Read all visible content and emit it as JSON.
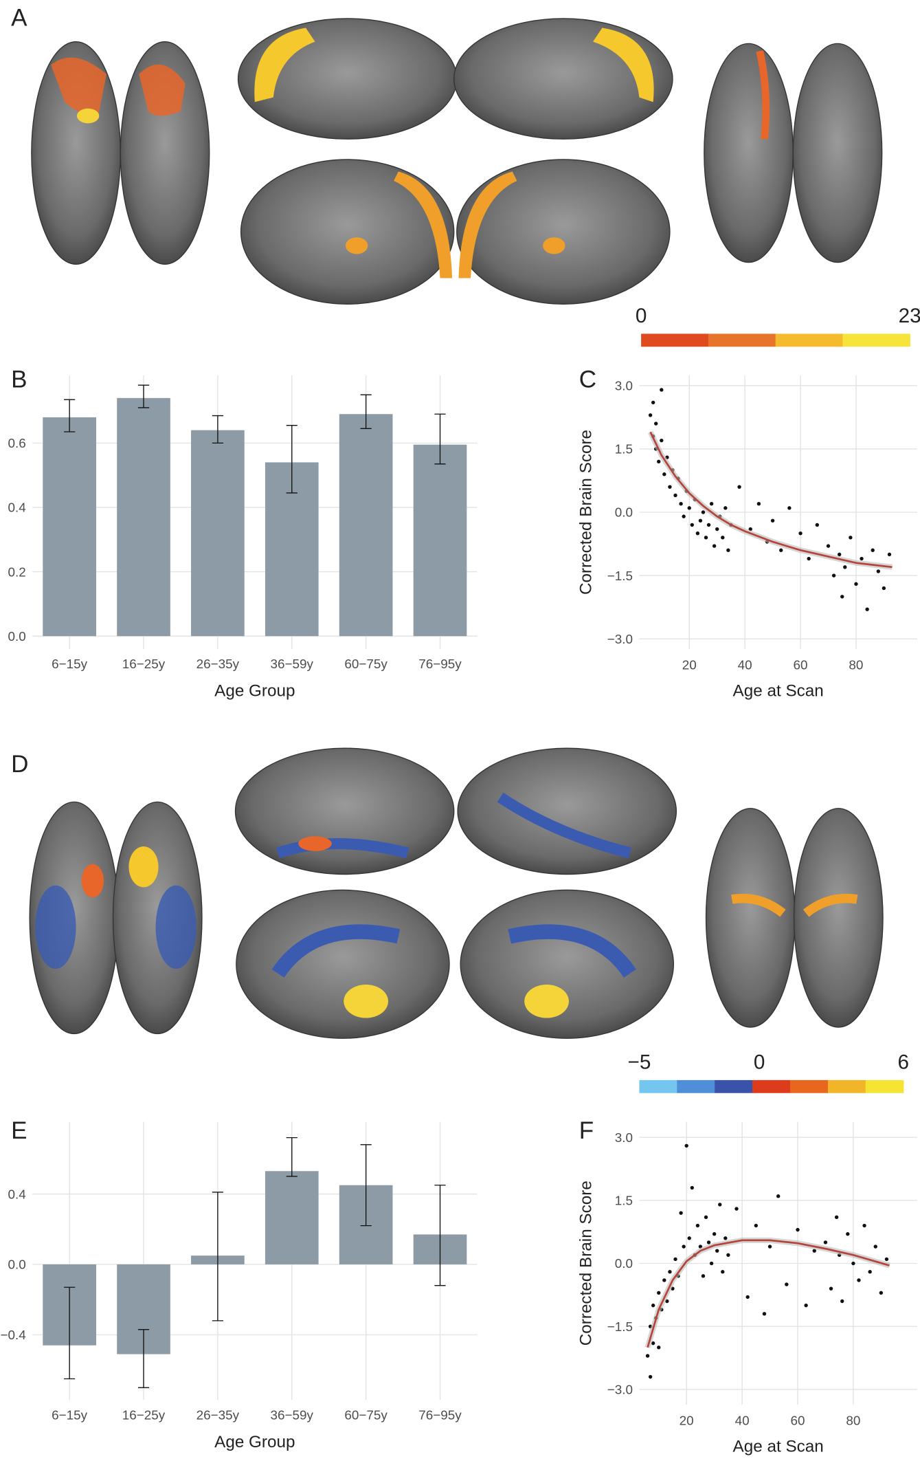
{
  "panels": [
    "A",
    "B",
    "C",
    "D",
    "E",
    "F"
  ],
  "colorbars": [
    {
      "lim": [
        0,
        23
      ],
      "ticks": [
        0,
        23
      ],
      "colors": [
        "#e04a1f",
        "#e8732a",
        "#f5bb2e",
        "#f7e43a"
      ]
    },
    {
      "lim": [
        -5,
        6
      ],
      "ticks": [
        {
          "value": -5,
          "label": "−5"
        },
        0,
        6
      ],
      "colors": [
        "#74c6f0",
        "#4f8fd8",
        "#3a53a8",
        "#dd3c1c",
        "#e8661e",
        "#f2b52a",
        "#f5e431"
      ]
    }
  ],
  "chart_data": [
    {
      "type": "bar",
      "x_label": "Age Group",
      "categories": [
        "6−15y",
        "16−25y",
        "26−35y",
        "36−59y",
        "60−75y",
        "76−95y"
      ],
      "values": [
        0.68,
        0.74,
        0.64,
        0.54,
        0.69,
        0.595
      ],
      "ci": [
        [
          0.635,
          0.735
        ],
        [
          0.71,
          0.78
        ],
        [
          0.6,
          0.685
        ],
        [
          0.445,
          0.655
        ],
        [
          0.645,
          0.75
        ],
        [
          0.535,
          0.69
        ]
      ],
      "color": "#8c9ba5",
      "ylim": [
        -0.04,
        0.81
      ],
      "yticks": [
        {
          "value": 0,
          "label": "0.0"
        },
        0.2,
        0.4,
        0.6
      ],
      "grid": true
    },
    {
      "type": "scatter",
      "x_label": "Age at Scan",
      "y_label": "Corrected Brain Score",
      "x": [
        6,
        7,
        7,
        8,
        8,
        9,
        10,
        10,
        11,
        12,
        13,
        14,
        15,
        16,
        17,
        18,
        19,
        20,
        21,
        22,
        23,
        24,
        25,
        26,
        27,
        28,
        29,
        30,
        31,
        32,
        33,
        34,
        35,
        38,
        42,
        45,
        48,
        50,
        53,
        56,
        60,
        63,
        66,
        70,
        72,
        74,
        75,
        76,
        78,
        80,
        82,
        84,
        86,
        88,
        90,
        92
      ],
      "values": [
        2.3,
        1.8,
        2.6,
        1.5,
        2.1,
        1.2,
        1.7,
        2.9,
        0.9,
        1.3,
        0.6,
        1.0,
        0.4,
        0.8,
        0.2,
        -0.1,
        0.5,
        0.1,
        -0.3,
        0.3,
        -0.5,
        -0.2,
        0.0,
        -0.6,
        -0.3,
        0.2,
        -0.8,
        -0.4,
        -0.1,
        -0.6,
        0.1,
        -0.9,
        -0.3,
        0.6,
        -0.4,
        0.2,
        -0.7,
        -0.2,
        -0.9,
        0.1,
        -0.5,
        -1.1,
        -0.3,
        -0.8,
        -1.5,
        -1.0,
        -2.0,
        -1.3,
        -0.6,
        -1.7,
        -1.1,
        -2.3,
        -0.9,
        -1.4,
        -1.8,
        -1.0
      ],
      "color": "#111111",
      "fit": {
        "color": "#b5453a",
        "x": [
          6,
          10,
          15,
          20,
          25,
          30,
          35,
          40,
          50,
          60,
          70,
          80,
          93
        ],
        "values": [
          1.9,
          1.35,
          0.85,
          0.45,
          0.15,
          -0.1,
          -0.3,
          -0.45,
          -0.7,
          -0.9,
          -1.05,
          -1.2,
          -1.3
        ]
      },
      "xlim": [
        2,
        102
      ],
      "xticks": [
        20,
        40,
        60,
        80
      ],
      "ylim": [
        -3.24,
        3.24
      ],
      "yticks": [
        {
          "value": -3,
          "label": "−3.0"
        },
        {
          "value": -1.5,
          "label": "−1.5"
        },
        {
          "value": 0,
          "label": "0.0"
        },
        1.5,
        {
          "value": 3,
          "label": "3.0"
        }
      ],
      "grid": true
    },
    {
      "type": "bar",
      "x_label": "Age Group",
      "categories": [
        "6−15y",
        "16−25y",
        "26−35y",
        "36−59y",
        "60−75y",
        "76−95y"
      ],
      "values": [
        -0.46,
        -0.51,
        0.05,
        0.53,
        0.45,
        0.17
      ],
      "ci": [
        [
          -0.65,
          -0.13
        ],
        [
          -0.7,
          -0.37
        ],
        [
          -0.32,
          0.41
        ],
        [
          0.5,
          0.72
        ],
        [
          0.22,
          0.68
        ],
        [
          -0.12,
          0.45
        ]
      ],
      "color": "#8c9ba5",
      "ylim": [
        -0.77,
        0.81
      ],
      "yticks": [
        {
          "value": -0.4,
          "label": "−0.4"
        },
        {
          "value": 0,
          "label": "0.0"
        },
        0.4
      ],
      "grid": true
    },
    {
      "type": "scatter",
      "x_label": "Age at Scan",
      "y_label": "Corrected Brain Score",
      "x": [
        6,
        7,
        7,
        8,
        8,
        9,
        10,
        10,
        11,
        12,
        13,
        14,
        15,
        16,
        17,
        18,
        19,
        20,
        21,
        22,
        23,
        24,
        25,
        26,
        27,
        28,
        29,
        30,
        31,
        32,
        33,
        34,
        35,
        38,
        42,
        45,
        48,
        50,
        53,
        56,
        60,
        63,
        66,
        70,
        72,
        74,
        75,
        76,
        78,
        80,
        82,
        84,
        86,
        88,
        90,
        92
      ],
      "values": [
        -2.2,
        -1.5,
        -2.7,
        -1.0,
        -1.9,
        -1.3,
        -0.7,
        -2.0,
        -1.1,
        -0.4,
        -0.9,
        -0.2,
        -0.6,
        0.1,
        -0.3,
        1.2,
        0.4,
        2.8,
        0.6,
        1.8,
        0.2,
        0.9,
        0.4,
        -0.3,
        1.1,
        0.5,
        0.0,
        0.7,
        0.3,
        1.4,
        -0.2,
        0.6,
        0.2,
        1.3,
        -0.8,
        0.9,
        -1.2,
        0.4,
        1.6,
        -0.5,
        0.8,
        -1.0,
        0.3,
        0.5,
        -0.6,
        1.1,
        0.2,
        -0.9,
        0.7,
        0.0,
        -0.4,
        0.9,
        -0.2,
        0.4,
        -0.7,
        0.1
      ],
      "color": "#111111",
      "fit": {
        "color": "#b5453a",
        "x": [
          6,
          10,
          15,
          20,
          25,
          30,
          40,
          50,
          60,
          70,
          80,
          93
        ],
        "values": [
          -2.0,
          -1.1,
          -0.4,
          0.05,
          0.3,
          0.43,
          0.55,
          0.55,
          0.48,
          0.35,
          0.2,
          -0.05
        ]
      },
      "xlim": [
        3,
        103
      ],
      "xticks": [
        20,
        40,
        60,
        80
      ],
      "ylim": [
        -3.36,
        3.37
      ],
      "yticks": [
        {
          "value": -3,
          "label": "−3.0"
        },
        {
          "value": -1.5,
          "label": "−1.5"
        },
        {
          "value": 0,
          "label": "0.0"
        },
        1.5,
        {
          "value": 3,
          "label": "3.0"
        }
      ],
      "grid": true
    }
  ]
}
